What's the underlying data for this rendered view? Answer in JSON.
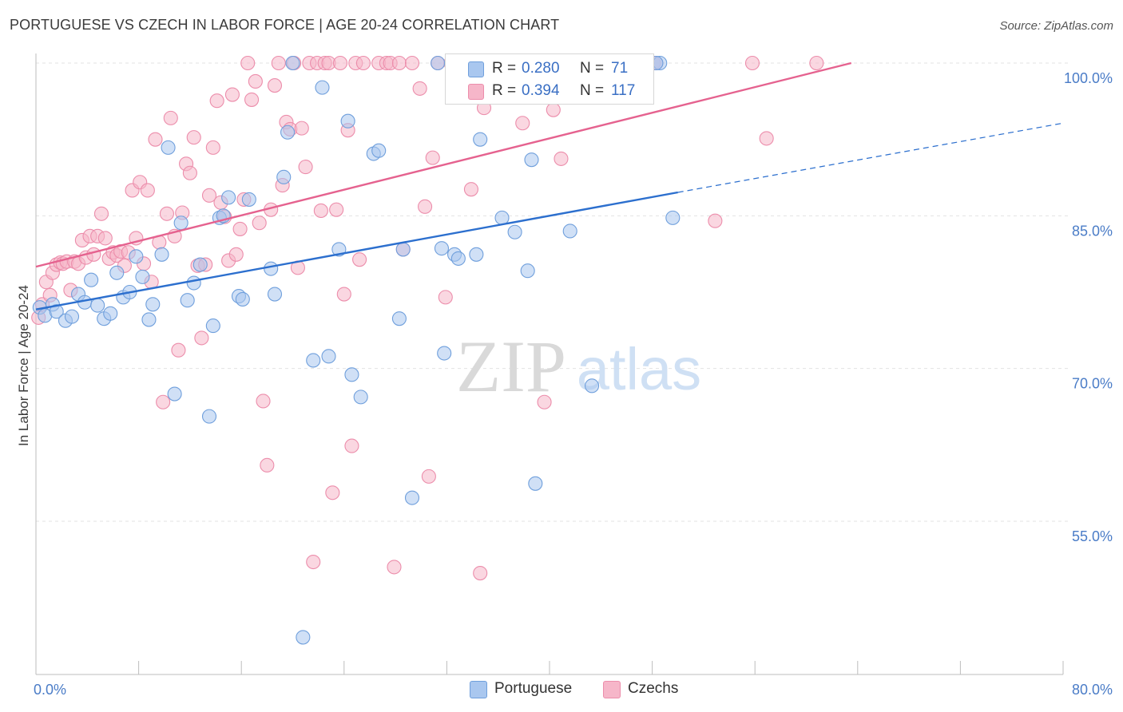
{
  "title": "PORTUGUESE VS CZECH IN LABOR FORCE | AGE 20-24 CORRELATION CHART",
  "source": "Source: ZipAtlas.com",
  "watermark": {
    "zip": "ZIP",
    "atlas": "atlas"
  },
  "legend": {
    "rows": [
      {
        "r_label": "R =",
        "r_value": "0.280",
        "n_label": "N =",
        "n_value": "71",
        "color": "#a9c7ef"
      },
      {
        "r_label": "R =",
        "r_value": "0.394",
        "n_label": "N =",
        "n_value": "117",
        "color": "#f6b6c9"
      }
    ]
  },
  "bottom_legend": [
    {
      "label": "Portuguese",
      "color": "#a9c7ef"
    },
    {
      "label": "Czechs",
      "color": "#f6b6c9"
    }
  ],
  "chart_data": {
    "type": "scatter",
    "ylabel": "In Labor Force | Age 20-24",
    "xlim": [
      0,
      80
    ],
    "ylim": [
      40,
      103
    ],
    "x_tick_labels": [
      {
        "value": 0,
        "label": "0.0%"
      },
      {
        "value": 80,
        "label": "80.0%"
      }
    ],
    "y_tick_labels": [
      {
        "value": 100,
        "label": "100.0%"
      },
      {
        "value": 85,
        "label": "85.0%"
      },
      {
        "value": 70,
        "label": "70.0%"
      },
      {
        "value": 55,
        "label": "55.0%"
      }
    ],
    "x_minor_ticks": [
      0,
      8,
      16,
      24,
      32,
      40,
      48,
      56,
      64,
      72,
      80
    ],
    "grid": true,
    "colors": {
      "portuguese_fill": "#a9c7ef",
      "portuguese_stroke": "#6f9fdc",
      "portuguese_line": "#2c6fce",
      "czechs_fill": "#f6b6c9",
      "czechs_stroke": "#ec8dab",
      "czechs_line": "#e5628f"
    },
    "series": [
      {
        "name": "Portuguese",
        "trend": {
          "x0": 0,
          "y0": 75.8,
          "x1": 50,
          "y1": 87.3,
          "dash_x1": 80,
          "dash_y1": 94.1
        },
        "points": [
          [
            0.3,
            76.0
          ],
          [
            0.7,
            75.2
          ],
          [
            1.3,
            76.3
          ],
          [
            1.6,
            75.6
          ],
          [
            2.3,
            74.7
          ],
          [
            2.8,
            75.1
          ],
          [
            3.3,
            77.3
          ],
          [
            3.8,
            76.5
          ],
          [
            4.3,
            78.7
          ],
          [
            4.8,
            76.2
          ],
          [
            5.3,
            74.9
          ],
          [
            5.8,
            75.4
          ],
          [
            6.3,
            79.4
          ],
          [
            6.8,
            77.0
          ],
          [
            7.3,
            77.5
          ],
          [
            7.8,
            81.0
          ],
          [
            8.3,
            79.0
          ],
          [
            8.8,
            74.8
          ],
          [
            9.1,
            76.3
          ],
          [
            9.8,
            81.2
          ],
          [
            10.3,
            91.7
          ],
          [
            10.8,
            67.5
          ],
          [
            11.3,
            84.3
          ],
          [
            11.8,
            76.7
          ],
          [
            12.3,
            78.4
          ],
          [
            12.8,
            80.2
          ],
          [
            13.5,
            65.3
          ],
          [
            13.8,
            74.2
          ],
          [
            14.3,
            84.8
          ],
          [
            14.6,
            85.0
          ],
          [
            15.0,
            86.8
          ],
          [
            15.8,
            77.1
          ],
          [
            16.1,
            76.8
          ],
          [
            16.6,
            86.6
          ],
          [
            18.3,
            79.8
          ],
          [
            18.6,
            77.3
          ],
          [
            19.3,
            88.8
          ],
          [
            19.6,
            93.2
          ],
          [
            20.0,
            100.0
          ],
          [
            20.8,
            43.6
          ],
          [
            22.3,
            97.6
          ],
          [
            21.6,
            70.8
          ],
          [
            22.8,
            71.2
          ],
          [
            23.6,
            81.7
          ],
          [
            24.3,
            94.3
          ],
          [
            24.6,
            69.4
          ],
          [
            25.3,
            67.2
          ],
          [
            26.3,
            91.1
          ],
          [
            26.7,
            91.4
          ],
          [
            28.3,
            74.9
          ],
          [
            28.6,
            81.7
          ],
          [
            29.3,
            57.3
          ],
          [
            31.3,
            100.0
          ],
          [
            31.6,
            81.8
          ],
          [
            31.8,
            71.5
          ],
          [
            32.6,
            81.2
          ],
          [
            32.9,
            80.8
          ],
          [
            34.3,
            81.2
          ],
          [
            34.6,
            92.5
          ],
          [
            36.3,
            84.8
          ],
          [
            37.3,
            83.4
          ],
          [
            38.3,
            79.6
          ],
          [
            38.6,
            90.5
          ],
          [
            38.9,
            58.7
          ],
          [
            40.6,
            100.0
          ],
          [
            41.6,
            83.5
          ],
          [
            43.3,
            68.3
          ],
          [
            48.6,
            100.0
          ],
          [
            49.6,
            84.8
          ],
          [
            47.6,
            100.0
          ],
          [
            48.3,
            100.0
          ]
        ]
      },
      {
        "name": "Czechs",
        "trend": {
          "x0": 0,
          "y0": 80.0,
          "x1": 63.5,
          "y1": 100.0
        },
        "points": [
          [
            0.2,
            75.0
          ],
          [
            0.5,
            76.3
          ],
          [
            0.8,
            78.5
          ],
          [
            1.1,
            77.2
          ],
          [
            1.3,
            79.4
          ],
          [
            1.6,
            80.2
          ],
          [
            1.9,
            80.4
          ],
          [
            2.1,
            80.3
          ],
          [
            2.4,
            80.5
          ],
          [
            2.7,
            77.7
          ],
          [
            3.0,
            80.5
          ],
          [
            3.3,
            80.3
          ],
          [
            3.6,
            82.6
          ],
          [
            3.9,
            80.9
          ],
          [
            4.2,
            83.0
          ],
          [
            4.5,
            81.2
          ],
          [
            4.8,
            83.0
          ],
          [
            5.1,
            85.2
          ],
          [
            5.4,
            82.8
          ],
          [
            5.7,
            80.8
          ],
          [
            6.0,
            81.4
          ],
          [
            6.3,
            81.1
          ],
          [
            6.6,
            81.5
          ],
          [
            6.9,
            80.1
          ],
          [
            7.2,
            81.4
          ],
          [
            7.5,
            87.5
          ],
          [
            7.8,
            82.8
          ],
          [
            8.1,
            88.3
          ],
          [
            8.4,
            80.3
          ],
          [
            8.7,
            87.5
          ],
          [
            9.0,
            78.5
          ],
          [
            9.3,
            92.5
          ],
          [
            9.6,
            82.4
          ],
          [
            9.9,
            66.7
          ],
          [
            10.2,
            85.2
          ],
          [
            10.5,
            94.6
          ],
          [
            10.8,
            83.0
          ],
          [
            11.1,
            71.8
          ],
          [
            11.4,
            85.3
          ],
          [
            11.7,
            90.1
          ],
          [
            12.0,
            89.2
          ],
          [
            12.3,
            92.7
          ],
          [
            12.6,
            80.1
          ],
          [
            12.9,
            73.0
          ],
          [
            13.2,
            80.2
          ],
          [
            13.5,
            87.0
          ],
          [
            13.8,
            91.7
          ],
          [
            14.1,
            96.3
          ],
          [
            14.4,
            86.3
          ],
          [
            14.7,
            84.9
          ],
          [
            15.0,
            80.6
          ],
          [
            15.3,
            96.9
          ],
          [
            15.6,
            81.2
          ],
          [
            15.9,
            83.7
          ],
          [
            16.2,
            86.6
          ],
          [
            16.5,
            100.0
          ],
          [
            16.8,
            96.4
          ],
          [
            17.1,
            98.2
          ],
          [
            17.4,
            84.3
          ],
          [
            17.7,
            66.8
          ],
          [
            18.0,
            60.5
          ],
          [
            18.3,
            85.6
          ],
          [
            18.6,
            97.8
          ],
          [
            18.9,
            100.0
          ],
          [
            19.2,
            88.0
          ],
          [
            19.5,
            94.2
          ],
          [
            19.8,
            93.5
          ],
          [
            20.1,
            100.0
          ],
          [
            20.4,
            79.9
          ],
          [
            20.7,
            93.6
          ],
          [
            21.0,
            89.8
          ],
          [
            21.3,
            100.0
          ],
          [
            21.6,
            51.0
          ],
          [
            21.9,
            100.0
          ],
          [
            22.2,
            85.5
          ],
          [
            22.5,
            100.0
          ],
          [
            22.8,
            100.0
          ],
          [
            23.1,
            57.8
          ],
          [
            23.4,
            85.6
          ],
          [
            23.7,
            100.0
          ],
          [
            24.0,
            77.3
          ],
          [
            24.3,
            93.4
          ],
          [
            24.6,
            62.4
          ],
          [
            24.9,
            100.0
          ],
          [
            25.2,
            80.7
          ],
          [
            25.5,
            100.0
          ],
          [
            26.7,
            100.0
          ],
          [
            27.3,
            100.0
          ],
          [
            27.6,
            100.0
          ],
          [
            27.9,
            50.5
          ],
          [
            28.3,
            100.0
          ],
          [
            28.6,
            81.7
          ],
          [
            29.3,
            100.0
          ],
          [
            29.9,
            97.5
          ],
          [
            30.3,
            85.9
          ],
          [
            30.6,
            59.4
          ],
          [
            30.9,
            90.7
          ],
          [
            31.3,
            100.0
          ],
          [
            31.9,
            77.0
          ],
          [
            32.3,
            100.0
          ],
          [
            33.3,
            100.0
          ],
          [
            33.9,
            87.6
          ],
          [
            34.9,
            95.6
          ],
          [
            34.6,
            49.9
          ],
          [
            36.3,
            100.0
          ],
          [
            37.3,
            100.0
          ],
          [
            37.9,
            94.1
          ],
          [
            39.3,
            100.0
          ],
          [
            39.6,
            66.7
          ],
          [
            40.3,
            95.4
          ],
          [
            40.9,
            90.6
          ],
          [
            48.1,
            100.0
          ],
          [
            48.3,
            100.0
          ],
          [
            52.9,
            84.5
          ],
          [
            55.8,
            100.0
          ],
          [
            56.9,
            92.6
          ],
          [
            60.8,
            100.0
          ]
        ]
      }
    ]
  }
}
